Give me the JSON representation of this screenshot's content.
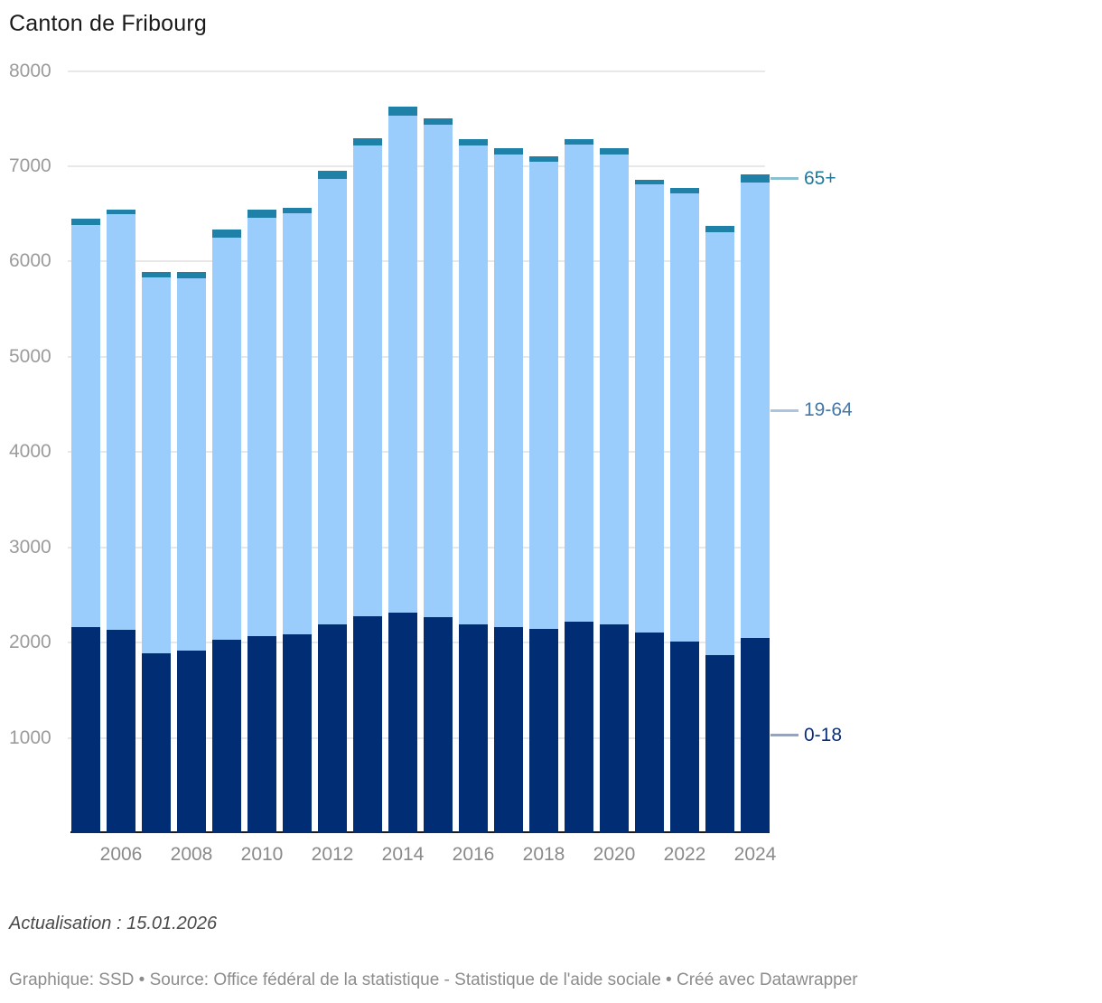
{
  "title": "Canton de Fribourg",
  "chart_data": {
    "type": "bar",
    "stacked": true,
    "title": "Canton de Fribourg",
    "x": [
      2005,
      2006,
      2007,
      2008,
      2009,
      2010,
      2011,
      2012,
      2013,
      2014,
      2015,
      2016,
      2017,
      2018,
      2019,
      2020,
      2021,
      2022,
      2023,
      2024
    ],
    "x_tick_labels": [
      "2006",
      "2008",
      "2010",
      "2012",
      "2014",
      "2016",
      "2018",
      "2020",
      "2022",
      "2024"
    ],
    "series": [
      {
        "name": "0-18",
        "color": "#002d73",
        "label_color": "#0b2f7a",
        "connector_color": "#97a3bd",
        "values": [
          2160,
          2130,
          1890,
          1920,
          2030,
          2070,
          2090,
          2195,
          2280,
          2310,
          2270,
          2195,
          2165,
          2140,
          2215,
          2190,
          2110,
          2010,
          1865,
          2050
        ]
      },
      {
        "name": "19-64",
        "color": "#9bcdfc",
        "label_color": "#4577a8",
        "connector_color": "#a9c6e1",
        "values": [
          4220,
          4370,
          3940,
          3900,
          4220,
          4390,
          4420,
          4675,
          4935,
          5225,
          5165,
          5025,
          4955,
          4910,
          5010,
          4930,
          4700,
          4705,
          4445,
          4775
        ]
      },
      {
        "name": "65+",
        "color": "#1f81a8",
        "label_color": "#1d7a9c",
        "connector_color": "#8cc0d1",
        "values": [
          70,
          40,
          60,
          70,
          85,
          80,
          55,
          80,
          80,
          90,
          70,
          60,
          65,
          55,
          60,
          65,
          50,
          55,
          60,
          90
        ]
      }
    ],
    "ylim": [
      0,
      8000
    ],
    "yticks": [
      1000,
      2000,
      3000,
      4000,
      5000,
      6000,
      7000,
      8000
    ],
    "grid": true,
    "legend_position": "right-of-last-bar"
  },
  "footer": {
    "update_note": "Actualisation : 15.01.2026",
    "credits": "Graphique: SSD • Source: Office fédéral de la statistique - Statistique de l'aide sociale • Créé avec Datawrapper"
  }
}
